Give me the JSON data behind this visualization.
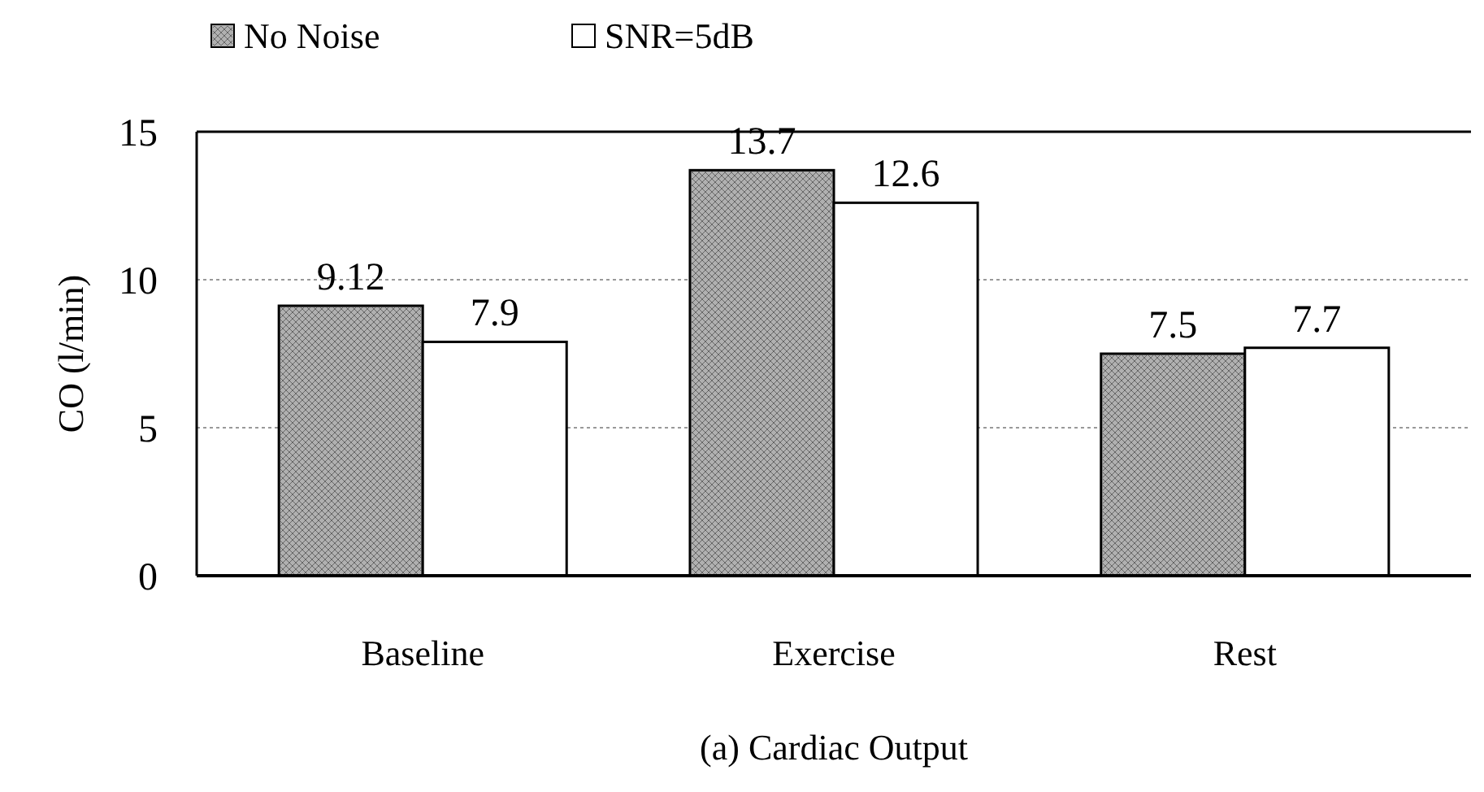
{
  "chart_data": {
    "type": "bar",
    "title": "(a) Cardiac Output",
    "ylabel": "CO (l/min)",
    "categories": [
      "Baseline",
      "Exercise",
      "Rest"
    ],
    "series": [
      {
        "name": "No Noise",
        "color": "#b0b0b0",
        "values": [
          9.12,
          13.7,
          7.5
        ]
      },
      {
        "name": "SNR=5dB",
        "color": "#ffffff",
        "values": [
          7.9,
          12.6,
          7.7
        ]
      }
    ],
    "ylim": [
      0,
      15
    ],
    "yticks": [
      0,
      5,
      10,
      15
    ],
    "grid": "y",
    "legend": "top left",
    "data_labels": true
  }
}
